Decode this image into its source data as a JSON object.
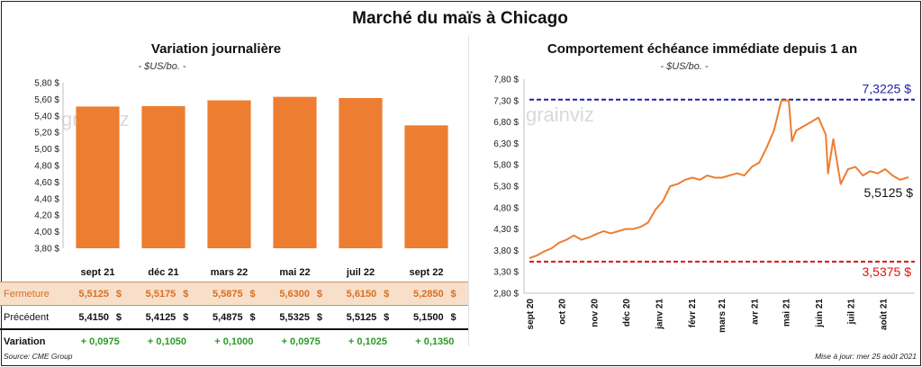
{
  "title": "Marché du maïs à Chicago",
  "left": {
    "title": "Variation journalière",
    "unit": "- $US/bo. -",
    "watermark": "grainviz",
    "yticks": [
      "5,80 $",
      "5,60 $",
      "5,40 $",
      "5,20 $",
      "5,00 $",
      "4,80 $",
      "4,60 $",
      "4,40 $",
      "4,20 $",
      "4,00 $",
      "3,80 $"
    ],
    "table": {
      "close_label": "Fermeture",
      "prev_label": "Précédent",
      "var_label": "Variation",
      "currency": "$",
      "close": [
        "5,5125",
        "5,5175",
        "5,5875",
        "5,6300",
        "5,6150",
        "5,2850"
      ],
      "prev": [
        "5,4150",
        "5,4125",
        "5,4875",
        "5,5325",
        "5,5125",
        "5,1500"
      ],
      "var": [
        "+ 0,0975",
        "+ 0,1050",
        "+ 0,1000",
        "+ 0,0975",
        "+ 0,1025",
        "+ 0,1350"
      ]
    }
  },
  "right": {
    "title": "Comportement  échéance immédiate depuis 1 an",
    "unit": "- $US/bo. -",
    "watermark": "grainviz",
    "yticks": [
      "7,80 $",
      "7,30 $",
      "6,80 $",
      "6,30 $",
      "5,80 $",
      "5,30 $",
      "4,80 $",
      "4,30 $",
      "3,80 $",
      "3,30 $",
      "2,80 $"
    ],
    "xticks": [
      "sept 20",
      "oct 20",
      "nov 20",
      "déc 20",
      "janv 21",
      "févr 21",
      "mars 21",
      "avr 21",
      "mai 21",
      "juin 21",
      "juil 21",
      "août 21"
    ],
    "high_label": "7,3225 $",
    "low_label": "3,5375 $",
    "last_label": "5,5125 $"
  },
  "source": "Source: CME Group",
  "update": "Mise à jour: mer 25 août 2021",
  "colors": {
    "bar": "#ed7d31",
    "high": "#1f1fa8",
    "low": "#e01010",
    "line": "#ed7d31",
    "green": "#2a9a2a"
  },
  "chart_data": [
    {
      "type": "bar",
      "title": "Variation journalière",
      "categories": [
        "sept 21",
        "déc 21",
        "mars 22",
        "mai 22",
        "juil 22",
        "sept 22"
      ],
      "values": [
        5.5125,
        5.5175,
        5.5875,
        5.63,
        5.615,
        5.285
      ],
      "ylabel": "- $US/bo. -",
      "ylim": [
        3.8,
        5.8
      ],
      "grid": false
    },
    {
      "type": "line",
      "title": "Comportement  échéance immédiate depuis 1 an",
      "ylabel": "- $US/bo. -",
      "ylim": [
        2.8,
        7.8
      ],
      "x": [
        "2020-09-01",
        "2020-09-08",
        "2020-09-15",
        "2020-09-22",
        "2020-09-29",
        "2020-10-06",
        "2020-10-13",
        "2020-10-20",
        "2020-10-27",
        "2020-11-03",
        "2020-11-10",
        "2020-11-17",
        "2020-11-24",
        "2020-12-01",
        "2020-12-08",
        "2020-12-15",
        "2020-12-22",
        "2020-12-29",
        "2021-01-05",
        "2021-01-12",
        "2021-01-19",
        "2021-01-26",
        "2021-02-02",
        "2021-02-09",
        "2021-02-16",
        "2021-02-23",
        "2021-03-02",
        "2021-03-09",
        "2021-03-16",
        "2021-03-23",
        "2021-03-30",
        "2021-04-06",
        "2021-04-13",
        "2021-04-20",
        "2021-04-27",
        "2021-05-04",
        "2021-05-07",
        "2021-05-11",
        "2021-05-18",
        "2021-05-25",
        "2021-06-01",
        "2021-06-08",
        "2021-06-10",
        "2021-06-15",
        "2021-06-22",
        "2021-06-29",
        "2021-07-06",
        "2021-07-13",
        "2021-07-20",
        "2021-07-27",
        "2021-08-03",
        "2021-08-10",
        "2021-08-17",
        "2021-08-25"
      ],
      "series": [
        {
          "values": [
            3.62,
            3.68,
            3.78,
            3.85,
            3.98,
            4.05,
            4.15,
            4.05,
            4.1,
            4.18,
            4.25,
            4.2,
            4.25,
            4.3,
            4.3,
            4.35,
            4.45,
            4.75,
            4.95,
            5.3,
            5.35,
            5.45,
            5.5,
            5.45,
            5.55,
            5.5,
            5.5,
            5.55,
            5.6,
            5.55,
            5.75,
            5.85,
            6.2,
            6.6,
            7.3,
            7.3,
            6.35,
            6.6,
            6.7,
            6.8,
            6.9,
            6.5,
            5.6,
            6.4,
            5.35,
            5.7,
            5.75,
            5.55,
            5.65,
            5.6,
            5.7,
            5.55,
            5.45,
            5.51
          ]
        }
      ],
      "annotations": [
        {
          "label": "7,3225 $",
          "y": 7.3225
        },
        {
          "label": "3,5375 $",
          "y": 3.5375
        },
        {
          "label": "5,5125 $",
          "y": 5.5125
        }
      ],
      "grid": false
    }
  ]
}
